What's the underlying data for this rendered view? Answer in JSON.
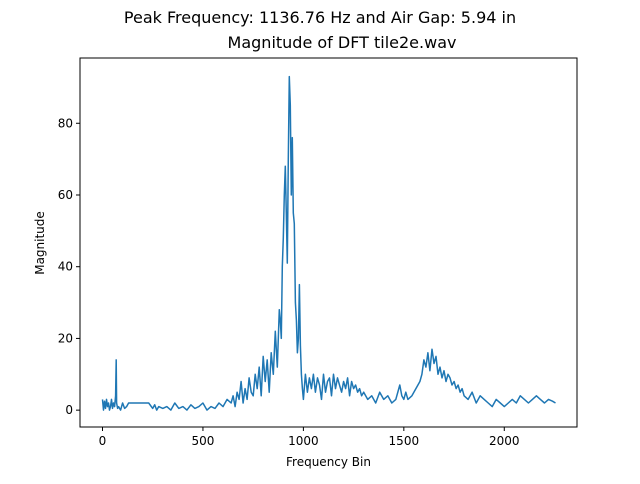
{
  "figure": {
    "suptitle": "Peak Frequency: 1136.76 Hz and Air Gap: 5.94 in",
    "title": "Magnitude of DFT tile2e.wav"
  },
  "chart_data": {
    "type": "line",
    "title": "Magnitude of DFT tile2e.wav",
    "suptitle": "Peak Frequency: 1136.76 Hz and Air Gap: 5.94 in",
    "xlabel": "Frequency Bin",
    "ylabel": "Magnitude",
    "xlim": [
      -112,
      2362
    ],
    "ylim": [
      -4.7,
      98.2
    ],
    "xticks": [
      0,
      500,
      1000,
      1500,
      2000
    ],
    "yticks": [
      0,
      20,
      40,
      60,
      80
    ],
    "grid": false,
    "line_color": "#1f77b4",
    "series": [
      {
        "x": [
          0,
          5,
          10,
          15,
          20,
          25,
          30,
          35,
          40,
          45,
          50,
          55,
          60,
          65,
          68,
          70,
          75,
          80,
          90,
          100,
          110,
          120,
          130,
          150,
          170,
          200,
          230,
          250,
          260,
          270,
          280,
          300,
          320,
          340,
          360,
          380,
          400,
          420,
          440,
          460,
          480,
          500,
          520,
          540,
          560,
          580,
          600,
          620,
          640,
          650,
          660,
          670,
          680,
          690,
          700,
          710,
          720,
          730,
          740,
          750,
          760,
          770,
          780,
          790,
          800,
          810,
          820,
          830,
          840,
          850,
          860,
          870,
          880,
          885,
          890,
          895,
          900,
          905,
          910,
          915,
          920,
          925,
          930,
          935,
          940,
          945,
          950,
          955,
          960,
          965,
          970,
          975,
          980,
          985,
          990,
          995,
          1000,
          1010,
          1020,
          1030,
          1040,
          1050,
          1060,
          1070,
          1080,
          1090,
          1100,
          1110,
          1120,
          1130,
          1140,
          1150,
          1160,
          1170,
          1180,
          1190,
          1200,
          1210,
          1220,
          1230,
          1240,
          1250,
          1260,
          1270,
          1280,
          1290,
          1300,
          1320,
          1340,
          1360,
          1380,
          1400,
          1420,
          1440,
          1460,
          1480,
          1490,
          1500,
          1510,
          1520,
          1540,
          1560,
          1580,
          1590,
          1600,
          1610,
          1620,
          1630,
          1640,
          1650,
          1660,
          1670,
          1680,
          1690,
          1700,
          1710,
          1720,
          1730,
          1740,
          1750,
          1760,
          1770,
          1780,
          1790,
          1800,
          1820,
          1840,
          1860,
          1880,
          1900,
          1920,
          1940,
          1960,
          1980,
          2000,
          2020,
          2040,
          2060,
          2080,
          2100,
          2120,
          2140,
          2160,
          2180,
          2200,
          2220,
          2240,
          2255
        ],
        "y": [
          3,
          0,
          2.5,
          0.5,
          3,
          1,
          2,
          0,
          1,
          3,
          0.5,
          2,
          1,
          4,
          14,
          2,
          0.5,
          1,
          0,
          2,
          0.5,
          1,
          2,
          2,
          2,
          2,
          2,
          0.5,
          1.5,
          0,
          1,
          0.5,
          1,
          0,
          2,
          0.5,
          1,
          0,
          1.5,
          0.5,
          1,
          2,
          0,
          1,
          0.5,
          2,
          1,
          3,
          2,
          4,
          1,
          5,
          3,
          8,
          2,
          6,
          3,
          9,
          5,
          4,
          10,
          6,
          12,
          4,
          15,
          8,
          14,
          5,
          16,
          10,
          22,
          12,
          28,
          25,
          20,
          40,
          48,
          60,
          68,
          55,
          41,
          70,
          93,
          85,
          60,
          76,
          55,
          52,
          30,
          25,
          16,
          20,
          35,
          18,
          10,
          6,
          3,
          10,
          5,
          9,
          6,
          10,
          5,
          9,
          7,
          3,
          10,
          5,
          8,
          9,
          4,
          10,
          6,
          9,
          7,
          5,
          8,
          6,
          9,
          4,
          8,
          6,
          7,
          5,
          6,
          4,
          5,
          3,
          4,
          2,
          5,
          3,
          4,
          2,
          3,
          7,
          4,
          3,
          5,
          3,
          4,
          6,
          8,
          10,
          14,
          12,
          16,
          11,
          17,
          13,
          15,
          10,
          12,
          9,
          11,
          8,
          10,
          9,
          7,
          8,
          6,
          7,
          5,
          6,
          4,
          3,
          5,
          2,
          4,
          3,
          2,
          1,
          3,
          2,
          1,
          2,
          3,
          2,
          4,
          3,
          2,
          3,
          4,
          3,
          2,
          3,
          2.5,
          2
        ]
      }
    ]
  }
}
